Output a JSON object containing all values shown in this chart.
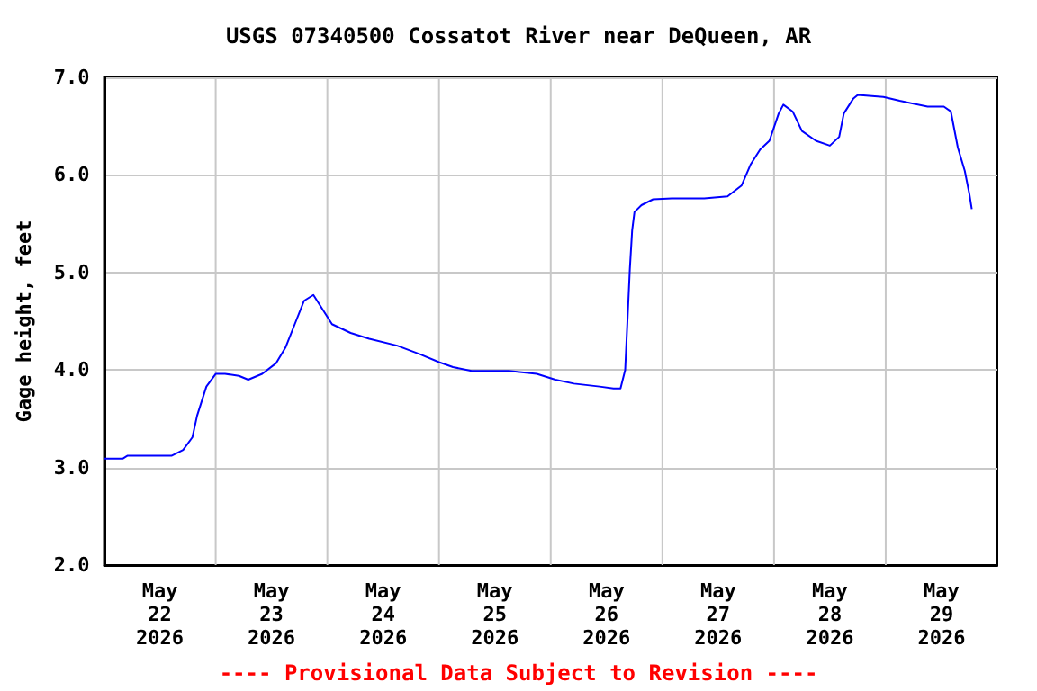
{
  "chart_data": {
    "type": "line",
    "title": "USGS 07340500 Cossatot River near DeQueen, AR",
    "ylabel": "Gage height, feet",
    "annotations": [
      "---- Provisional Data Subject to Revision ----"
    ],
    "x": [
      "2026-05-22T00:00",
      "2026-05-22T04:00",
      "2026-05-22T05:00",
      "2026-05-22T14:30",
      "2026-05-22T17:00",
      "2026-05-22T19:00",
      "2026-05-22T20:00",
      "2026-05-22T22:00",
      "2026-05-23T00:00",
      "2026-05-23T02:00",
      "2026-05-23T05:00",
      "2026-05-23T07:00",
      "2026-05-23T10:00",
      "2026-05-23T13:00",
      "2026-05-23T15:00",
      "2026-05-23T17:00",
      "2026-05-23T19:00",
      "2026-05-23T21:00",
      "2026-05-23T23:00",
      "2026-05-24T01:00",
      "2026-05-24T05:00",
      "2026-05-24T09:00",
      "2026-05-24T15:00",
      "2026-05-24T20:00",
      "2026-05-25T00:00",
      "2026-05-25T03:00",
      "2026-05-25T07:00",
      "2026-05-25T15:00",
      "2026-05-25T21:00",
      "2026-05-26T01:00",
      "2026-05-26T05:00",
      "2026-05-26T10:30",
      "2026-05-26T13:30",
      "2026-05-26T15:00",
      "2026-05-26T16:00",
      "2026-05-26T17:00",
      "2026-05-26T17:30",
      "2026-05-26T18:00",
      "2026-05-26T19:30",
      "2026-05-26T22:00",
      "2026-05-27T02:00",
      "2026-05-27T09:00",
      "2026-05-27T14:00",
      "2026-05-27T17:00",
      "2026-05-27T19:00",
      "2026-05-27T21:00",
      "2026-05-27T23:00",
      "2026-05-28T01:00",
      "2026-05-28T02:00",
      "2026-05-28T04:00",
      "2026-05-28T06:00",
      "2026-05-28T09:00",
      "2026-05-28T12:00",
      "2026-05-28T14:00",
      "2026-05-28T15:00",
      "2026-05-28T17:00",
      "2026-05-28T18:00",
      "2026-05-28T23:30",
      "2026-05-29T03:00",
      "2026-05-29T09:00",
      "2026-05-29T12:30",
      "2026-05-29T14:00",
      "2026-05-29T15:30",
      "2026-05-29T17:00",
      "2026-05-29T18:00",
      "2026-05-29T18:30"
    ],
    "series": [
      {
        "color": "#0000ff",
        "values": [
          3.09,
          3.09,
          3.12,
          3.12,
          3.18,
          3.31,
          3.53,
          3.83,
          3.96,
          3.96,
          3.94,
          3.9,
          3.96,
          4.07,
          4.23,
          4.47,
          4.71,
          4.77,
          4.62,
          4.47,
          4.38,
          4.32,
          4.25,
          4.16,
          4.08,
          4.03,
          3.99,
          3.99,
          3.96,
          3.9,
          3.86,
          3.83,
          3.81,
          3.81,
          4.0,
          5.03,
          5.43,
          5.62,
          5.69,
          5.75,
          5.76,
          5.76,
          5.78,
          5.89,
          6.11,
          6.26,
          6.35,
          6.63,
          6.72,
          6.65,
          6.45,
          6.35,
          6.3,
          6.39,
          6.63,
          6.78,
          6.82,
          6.8,
          6.76,
          6.7,
          6.7,
          6.65,
          6.28,
          6.04,
          5.8,
          5.65
        ]
      }
    ],
    "xlim": [
      "2026-05-22T00:00",
      "2026-05-30T00:00"
    ],
    "xticks": [
      {
        "value": "2026-05-22T12:00",
        "label": "May\n22\n2026"
      },
      {
        "value": "2026-05-23T00:00",
        "label": null
      },
      {
        "value": "2026-05-23T12:00",
        "label": "May\n23\n2026"
      },
      {
        "value": "2026-05-24T00:00",
        "label": null
      },
      {
        "value": "2026-05-24T12:00",
        "label": "May\n24\n2026"
      },
      {
        "value": "2026-05-25T00:00",
        "label": null
      },
      {
        "value": "2026-05-25T12:00",
        "label": "May\n25\n2026"
      },
      {
        "value": "2026-05-26T00:00",
        "label": null
      },
      {
        "value": "2026-05-26T12:00",
        "label": "May\n26\n2026"
      },
      {
        "value": "2026-05-27T00:00",
        "label": null
      },
      {
        "value": "2026-05-27T12:00",
        "label": "May\n27\n2026"
      },
      {
        "value": "2026-05-28T00:00",
        "label": null
      },
      {
        "value": "2026-05-28T12:00",
        "label": "May\n28\n2026"
      },
      {
        "value": "2026-05-29T00:00",
        "label": null
      },
      {
        "value": "2026-05-29T12:00",
        "label": "May\n29\n2026"
      }
    ],
    "ylim": [
      2,
      7
    ],
    "yticks": [
      {
        "value": 2,
        "label": "2.0"
      },
      {
        "value": 3,
        "label": "3.0"
      },
      {
        "value": 4,
        "label": "4.0"
      },
      {
        "value": 5,
        "label": "5.0"
      },
      {
        "value": 6,
        "label": "6.0"
      },
      {
        "value": 7,
        "label": "7.0"
      }
    ],
    "grid": true,
    "marker": "none",
    "line_style": "solid"
  }
}
